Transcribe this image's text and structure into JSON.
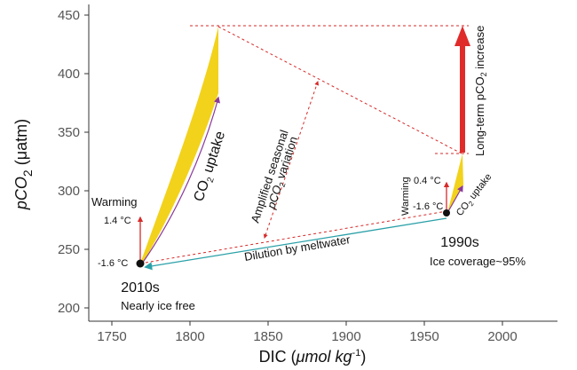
{
  "chart_data": {
    "type": "diagram",
    "x_axis": {
      "label_main": "DIC (",
      "label_unit": "μmol kg",
      "label_sup": "-1",
      "label_close": ")",
      "ticks": [
        "1750",
        "1800",
        "1850",
        "1900",
        "1950",
        "2000"
      ]
    },
    "y_axis": {
      "label_main": "pCO",
      "label_sub": "2",
      "label_unit": " (μatm)",
      "ticks": [
        "200",
        "250",
        "300",
        "350",
        "400",
        "450"
      ]
    },
    "labels": {
      "warming_left": "Warming",
      "temp_left_top": "1.4 °C",
      "temp_left_bottom": "-1.6 °C",
      "co2_uptake_left_pre": "CO",
      "co2_uptake_left_sub": "2",
      "co2_uptake_left_post": " uptake",
      "amplified_line1": "Amplified seasonal",
      "amplified_line2_pre": "pCO",
      "amplified_line2_sub": "2",
      "amplified_line2_post": " variation",
      "dilution": "Dilution by meltwater",
      "label_2010s": "2010s",
      "nearly_ice_free": "Nearly ice free",
      "label_1990s": "1990s",
      "ice_coverage": "Ice coverage~95%",
      "warming_right": "Warming",
      "temp_right_top": "0.4 °C",
      "temp_right_bottom": "-1.6 °C",
      "co2_uptake_right_pre": "CO",
      "co2_uptake_right_sub": "2",
      "co2_uptake_right_post": " uptake",
      "long_term_pre": "Long-term pCO",
      "long_term_sub": "2",
      "long_term_post": " increase"
    },
    "colors": {
      "fill_yellow": "#f2d21b",
      "red": "#e02b2b",
      "dark_red": "#b52020",
      "purple": "#8a3a9a",
      "teal": "#2aa0a8",
      "point": "#111111"
    }
  }
}
